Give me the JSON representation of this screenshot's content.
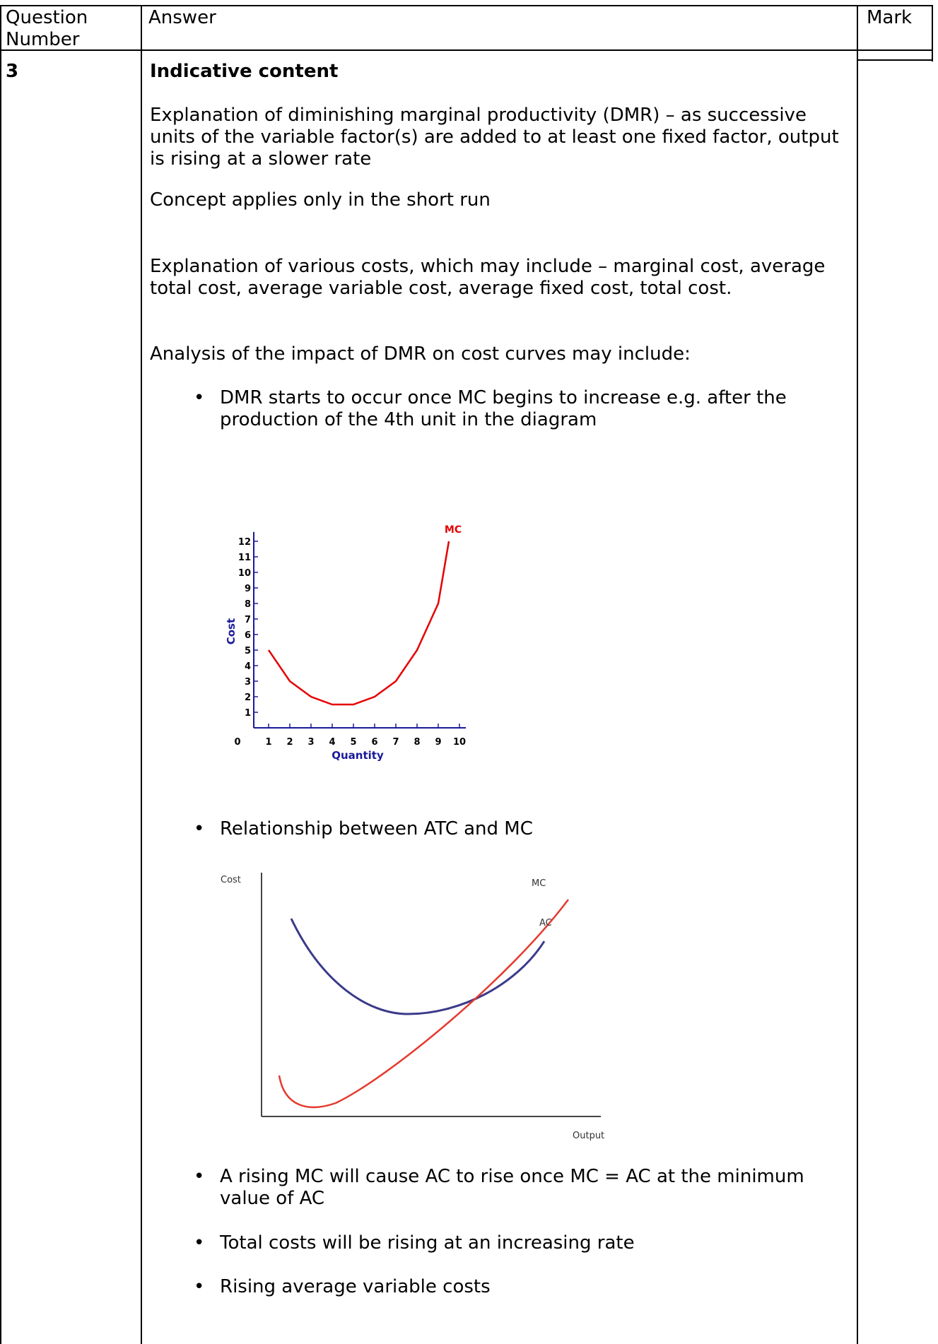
{
  "table": {
    "headers": {
      "question_number": "Question Number",
      "answer": "Answer",
      "mark": "Mark"
    },
    "question_number": "3"
  },
  "content": {
    "heading": "Indicative content",
    "paragraphs": [
      "Explanation of diminishing marginal productivity (DMR) – as successive units of the variable factor(s) are added to at least one fixed factor, output is rising at a slower rate",
      "Concept applies only in the short run",
      "Explanation of various costs, which may include – marginal cost, average total cost, average variable cost, average fixed cost, total cost.",
      "Analysis of the impact of DMR  on cost curves may include:"
    ],
    "bullets": [
      "DMR starts to occur once MC begins to increase e.g. after the production of the 4th unit in the diagram",
      "Relationship between ATC and MC",
      "A rising MC will cause AC to rise once MC = AC at the minimum value of AC",
      "Total costs will be rising at an increasing rate",
      "Rising average variable costs"
    ]
  },
  "chart_data": [
    {
      "type": "line",
      "title": "",
      "xlabel": "Quantity",
      "ylabel": "Cost",
      "x_ticks": [
        "0",
        "1",
        "2",
        "3",
        "4",
        "5",
        "6",
        "7",
        "8",
        "9",
        "10"
      ],
      "y_ticks": [
        "1",
        "2",
        "3",
        "4",
        "5",
        "6",
        "7",
        "8",
        "9",
        "10",
        "11",
        "12"
      ],
      "xlim": [
        0,
        10
      ],
      "ylim": [
        0,
        12
      ],
      "series": [
        {
          "name": "MC",
          "color": "#e60000",
          "x": [
            1,
            2,
            3,
            4,
            5,
            6,
            7,
            8,
            9,
            9.5
          ],
          "y": [
            5,
            3,
            2,
            1.5,
            1.5,
            2,
            3,
            5,
            8,
            12
          ]
        }
      ],
      "axis_color": "#1a1a9a",
      "grid": false
    },
    {
      "type": "line",
      "title": "",
      "xlabel": "Output",
      "ylabel": "Cost",
      "series": [
        {
          "name": "MC",
          "color": "#e53a2e",
          "shape": "U-shaped, rising steeply"
        },
        {
          "name": "AC",
          "color": "#3a3a8a",
          "shape": "U-shaped, minimum where MC crosses"
        }
      ],
      "grid": false
    }
  ]
}
